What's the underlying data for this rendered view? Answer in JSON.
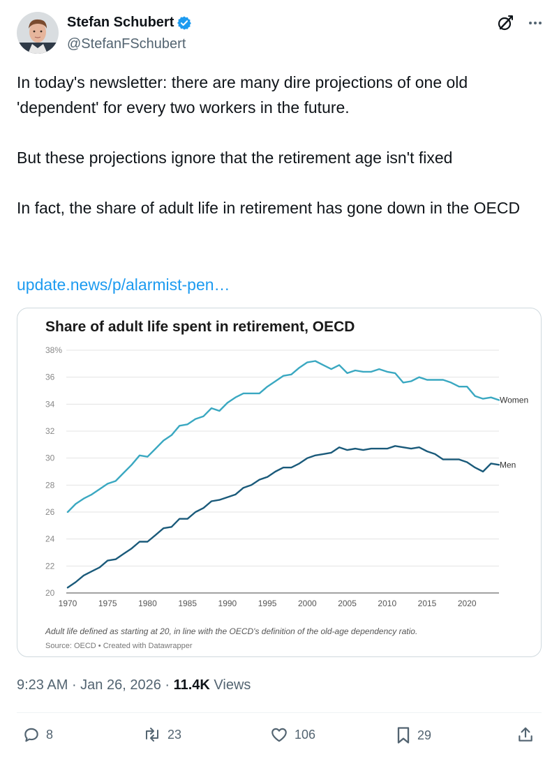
{
  "author": {
    "name": "Stefan Schubert",
    "handle": "@StefanFSchubert",
    "verified": true
  },
  "tweet": {
    "text": "In today's newsletter: there are many dire projections of one old 'dependent' for every two workers in the future.\n\nBut these projections ignore that the retirement age isn't fixed\n\nIn fact, the share of adult life in retirement has gone down in the OECD",
    "link": "update.news/p/alarmist-pen…"
  },
  "chart_data": {
    "type": "line",
    "title": "Share of adult life spent in retirement, OECD",
    "x": [
      1970,
      1971,
      1972,
      1973,
      1974,
      1975,
      1976,
      1977,
      1978,
      1979,
      1980,
      1981,
      1982,
      1983,
      1984,
      1985,
      1986,
      1987,
      1988,
      1989,
      1990,
      1991,
      1992,
      1993,
      1994,
      1995,
      1996,
      1997,
      1998,
      1999,
      2000,
      2001,
      2002,
      2003,
      2004,
      2005,
      2006,
      2007,
      2008,
      2009,
      2010,
      2011,
      2012,
      2013,
      2014,
      2015,
      2016,
      2017,
      2018,
      2019,
      2020,
      2021,
      2022,
      2023,
      2024
    ],
    "series": [
      {
        "name": "Women",
        "color": "#3aa8c1",
        "values": [
          26.0,
          26.6,
          27.0,
          27.3,
          27.7,
          28.1,
          28.3,
          28.9,
          29.5,
          30.2,
          30.1,
          30.7,
          31.3,
          31.7,
          32.4,
          32.5,
          32.9,
          33.1,
          33.7,
          33.5,
          34.1,
          34.5,
          34.8,
          34.8,
          34.8,
          35.3,
          35.7,
          36.1,
          36.2,
          36.7,
          37.1,
          37.2,
          36.9,
          36.6,
          36.9,
          36.3,
          36.5,
          36.4,
          36.4,
          36.6,
          36.4,
          36.3,
          35.6,
          35.7,
          36.0,
          35.8,
          35.8,
          35.8,
          35.6,
          35.3,
          35.3,
          34.6,
          34.4,
          34.5,
          34.3
        ]
      },
      {
        "name": "Men",
        "color": "#1a5a7a",
        "values": [
          20.4,
          20.8,
          21.3,
          21.6,
          21.9,
          22.4,
          22.5,
          22.9,
          23.3,
          23.8,
          23.8,
          24.3,
          24.8,
          24.9,
          25.5,
          25.5,
          26.0,
          26.3,
          26.8,
          26.9,
          27.1,
          27.3,
          27.8,
          28.0,
          28.4,
          28.6,
          29.0,
          29.3,
          29.3,
          29.6,
          30.0,
          30.2,
          30.3,
          30.4,
          30.8,
          30.6,
          30.7,
          30.6,
          30.7,
          30.7,
          30.7,
          30.9,
          30.8,
          30.7,
          30.8,
          30.5,
          30.3,
          29.9,
          29.9,
          29.9,
          29.7,
          29.3,
          29.0,
          29.6,
          29.5
        ]
      }
    ],
    "ylim": [
      20,
      38
    ],
    "y_ticks": [
      "38%",
      "36",
      "34",
      "32",
      "30",
      "28",
      "26",
      "24",
      "22",
      "20"
    ],
    "y_tick_values": [
      38,
      36,
      34,
      32,
      30,
      28,
      26,
      24,
      22,
      20
    ],
    "x_ticks": [
      "1970",
      "1975",
      "1980",
      "1985",
      "1990",
      "1995",
      "2000",
      "2005",
      "2010",
      "2015",
      "2020"
    ],
    "x_tick_values": [
      1970,
      1975,
      1980,
      1985,
      1990,
      1995,
      2000,
      2005,
      2010,
      2015,
      2020
    ],
    "note": "Adult life defined as starting at 20, in line with the OECD's definition of the old-age dependency ratio.",
    "source": "Source: OECD • Created with Datawrapper",
    "grid": true
  },
  "meta": {
    "time": "9:23 AM",
    "sep1": " · ",
    "date": "Jan 26, 2026",
    "sep2": " · ",
    "views_count": "11.4K",
    "views_label": " Views"
  },
  "actions": {
    "replies": "8",
    "reposts": "23",
    "likes": "106",
    "bookmarks": "29"
  },
  "colors": {
    "link": "#1d9bf0",
    "verified": "#1d9bf0",
    "muted": "#536471"
  }
}
